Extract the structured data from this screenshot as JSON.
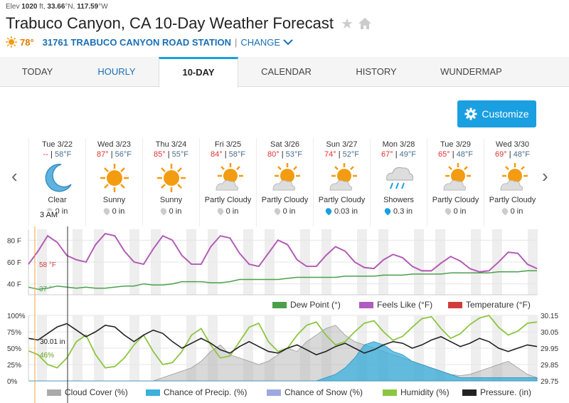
{
  "header": {
    "elev_label": "Elev",
    "elev_value": "1020",
    "elev_unit": "ft,",
    "lat": "33.66",
    "lat_unit": "°N,",
    "lon": "117.59",
    "lon_unit": "°W",
    "title": "Trabuco Canyon, CA 10-Day Weather Forecast",
    "current_temp": "78°",
    "station": "31761 TRABUCO CANYON ROAD STATION",
    "separator": "|",
    "change": "CHANGE"
  },
  "tabs": [
    "TODAY",
    "HOURLY",
    "10-DAY",
    "CALENDAR",
    "HISTORY",
    "WUNDERMAP"
  ],
  "active_tab": "10-DAY",
  "customize_label": "Customize",
  "time_label": "3 AM",
  "days": [
    {
      "name": "Tue 3/22",
      "hi": "--",
      "lo": "58°F",
      "cond": "Clear",
      "icon": "moon-icon",
      "precip": "0 in"
    },
    {
      "name": "Wed 3/23",
      "hi": "87°",
      "lo": "56°F",
      "cond": "Sunny",
      "icon": "sun-icon",
      "precip": "0 in"
    },
    {
      "name": "Thu 3/24",
      "hi": "85°",
      "lo": "55°F",
      "cond": "Sunny",
      "icon": "sun-icon",
      "precip": "0 in"
    },
    {
      "name": "Fri 3/25",
      "hi": "84°",
      "lo": "58°F",
      "cond": "Partly Cloudy",
      "icon": "partly-cloudy-icon",
      "precip": "0 in"
    },
    {
      "name": "Sat 3/26",
      "hi": "80°",
      "lo": "53°F",
      "cond": "Partly Cloudy",
      "icon": "partly-cloudy-icon",
      "precip": "0 in"
    },
    {
      "name": "Sun 3/27",
      "hi": "74°",
      "lo": "52°F",
      "cond": "Partly Cloudy",
      "icon": "partly-cloudy-icon",
      "precip": "0.03 in"
    },
    {
      "name": "Mon 3/28",
      "hi": "67°",
      "lo": "49°F",
      "cond": "Showers",
      "icon": "showers-icon",
      "precip": "0.3 in"
    },
    {
      "name": "Tue 3/29",
      "hi": "65°",
      "lo": "48°F",
      "cond": "Partly Cloudy",
      "icon": "partly-cloudy-icon",
      "precip": "0 in"
    },
    {
      "name": "Wed 3/30",
      "hi": "69°",
      "lo": "48°F",
      "cond": "Partly Cloudy",
      "icon": "partly-cloudy-icon",
      "precip": "0 in"
    }
  ],
  "chart_data": [
    {
      "type": "line",
      "y_ticks": [
        "80 F",
        "60 F",
        "40 F"
      ],
      "ylim": [
        30,
        90
      ],
      "annotations": [
        "58 °F",
        "37 °"
      ],
      "series": [
        {
          "name": "Temperature (°F)",
          "color": "#d33b3b",
          "values": [
            58,
            70,
            84,
            78,
            66,
            62,
            60,
            76,
            86,
            84,
            70,
            60,
            58,
            72,
            84,
            80,
            66,
            58,
            58,
            74,
            84,
            82,
            68,
            58,
            56,
            68,
            80,
            76,
            62,
            56,
            56,
            66,
            74,
            70,
            60,
            55,
            54,
            62,
            67,
            64,
            56,
            52,
            52,
            59,
            65,
            61,
            54,
            51,
            52,
            60,
            69,
            68,
            58,
            54
          ]
        },
        {
          "name": "Feels Like (°F)",
          "color": "#b05cc0",
          "values": [
            58,
            70,
            84,
            78,
            66,
            62,
            60,
            76,
            86,
            84,
            70,
            60,
            58,
            72,
            84,
            80,
            66,
            58,
            58,
            74,
            84,
            82,
            68,
            58,
            56,
            68,
            80,
            76,
            62,
            56,
            56,
            66,
            74,
            70,
            60,
            55,
            54,
            62,
            67,
            64,
            56,
            52,
            52,
            59,
            65,
            61,
            54,
            51,
            52,
            60,
            69,
            68,
            58,
            54
          ]
        },
        {
          "name": "Dew Point (°)",
          "color": "#4aa04a",
          "values": [
            37,
            35,
            36,
            38,
            37,
            36,
            37,
            36,
            36,
            37,
            38,
            38,
            40,
            39,
            39,
            40,
            42,
            42,
            42,
            41,
            41,
            42,
            44,
            44,
            44,
            44,
            44,
            45,
            46,
            46,
            46,
            46,
            46,
            47,
            47,
            47,
            47,
            48,
            48,
            48,
            49,
            49,
            49,
            49,
            50,
            50,
            50,
            50,
            50,
            51,
            51,
            51,
            52,
            52
          ]
        }
      ]
    },
    {
      "type": "area",
      "y_ticks_left": [
        "100%",
        "75%",
        "50%",
        "25%",
        "0%"
      ],
      "y_ticks_right": [
        "30.15",
        "30.05",
        "29.95",
        "29.85",
        "29.75"
      ],
      "ylim": [
        0,
        100
      ],
      "ylim_right": [
        29.75,
        30.15
      ],
      "annotations": [
        "30.01 in",
        "46%"
      ],
      "series": [
        {
          "name": "Cloud Cover (%)",
          "color": "#aaaaaa",
          "values": [
            0,
            0,
            0,
            0,
            0,
            0,
            0,
            0,
            0,
            0,
            0,
            0,
            0,
            0,
            5,
            10,
            15,
            20,
            30,
            45,
            55,
            40,
            35,
            30,
            25,
            30,
            40,
            50,
            45,
            60,
            70,
            80,
            85,
            70,
            60,
            55,
            50,
            45,
            40,
            35,
            30,
            25,
            20,
            15,
            10,
            8,
            10,
            15,
            20,
            25,
            30,
            20,
            10,
            5
          ]
        },
        {
          "name": "Chance of Precip. (%)",
          "color": "#3ab0dc",
          "values": [
            0,
            0,
            0,
            0,
            0,
            0,
            0,
            0,
            0,
            0,
            0,
            0,
            0,
            0,
            0,
            0,
            0,
            0,
            0,
            0,
            0,
            0,
            0,
            0,
            0,
            0,
            0,
            0,
            0,
            0,
            0,
            5,
            10,
            20,
            35,
            55,
            60,
            55,
            45,
            40,
            30,
            25,
            20,
            15,
            10,
            5,
            5,
            5,
            5,
            5,
            5,
            5,
            5,
            5
          ]
        },
        {
          "name": "Chance of Snow (%)",
          "color": "#9ea8e0",
          "values": []
        },
        {
          "name": "Humidity (%)",
          "color": "#8cc63f",
          "values": [
            46,
            40,
            25,
            20,
            35,
            60,
            70,
            40,
            20,
            22,
            35,
            55,
            70,
            45,
            25,
            28,
            45,
            70,
            80,
            55,
            35,
            38,
            60,
            82,
            88,
            60,
            45,
            50,
            70,
            85,
            90,
            70,
            55,
            60,
            75,
            88,
            92,
            75,
            62,
            68,
            82,
            95,
            98,
            80,
            65,
            72,
            86,
            96,
            100,
            82,
            70,
            76,
            88,
            90
          ]
        },
        {
          "name": "Pressure. (in)",
          "color": "#222222",
          "axis": "right",
          "values": [
            30.01,
            30.0,
            30.04,
            30.08,
            30.1,
            30.06,
            30.02,
            30.05,
            30.09,
            30.08,
            30.03,
            29.99,
            30.03,
            30.06,
            30.04,
            29.99,
            29.95,
            29.98,
            30.01,
            29.98,
            29.94,
            29.92,
            29.96,
            29.99,
            29.96,
            29.93,
            29.92,
            29.95,
            29.97,
            29.94,
            29.91,
            29.93,
            29.96,
            29.98,
            29.95,
            29.92,
            29.94,
            29.97,
            29.99,
            29.98,
            29.95,
            29.97,
            30.0,
            30.02,
            29.99,
            29.96,
            29.98,
            30.01,
            29.99,
            29.95,
            29.93,
            29.95,
            29.97,
            29.96
          ]
        }
      ]
    }
  ],
  "legend_top": [
    "Dew Point (°)",
    "Feels Like (°F)",
    "Temperature (°F)"
  ],
  "legend_bottom": [
    "Cloud Cover (%)",
    "Chance of Precip. (%)",
    "Chance of Snow (%)",
    "Humidity (%)",
    "Pressure. (in)"
  ],
  "colors": {
    "accent": "#1a9fe0",
    "link": "#1a6fb5",
    "temp": "#d33b3b",
    "dew": "#4aa04a",
    "feels": "#b05cc0",
    "humidity": "#8cc63f",
    "precip": "#3ab0dc",
    "cloud": "#aaaaaa"
  }
}
